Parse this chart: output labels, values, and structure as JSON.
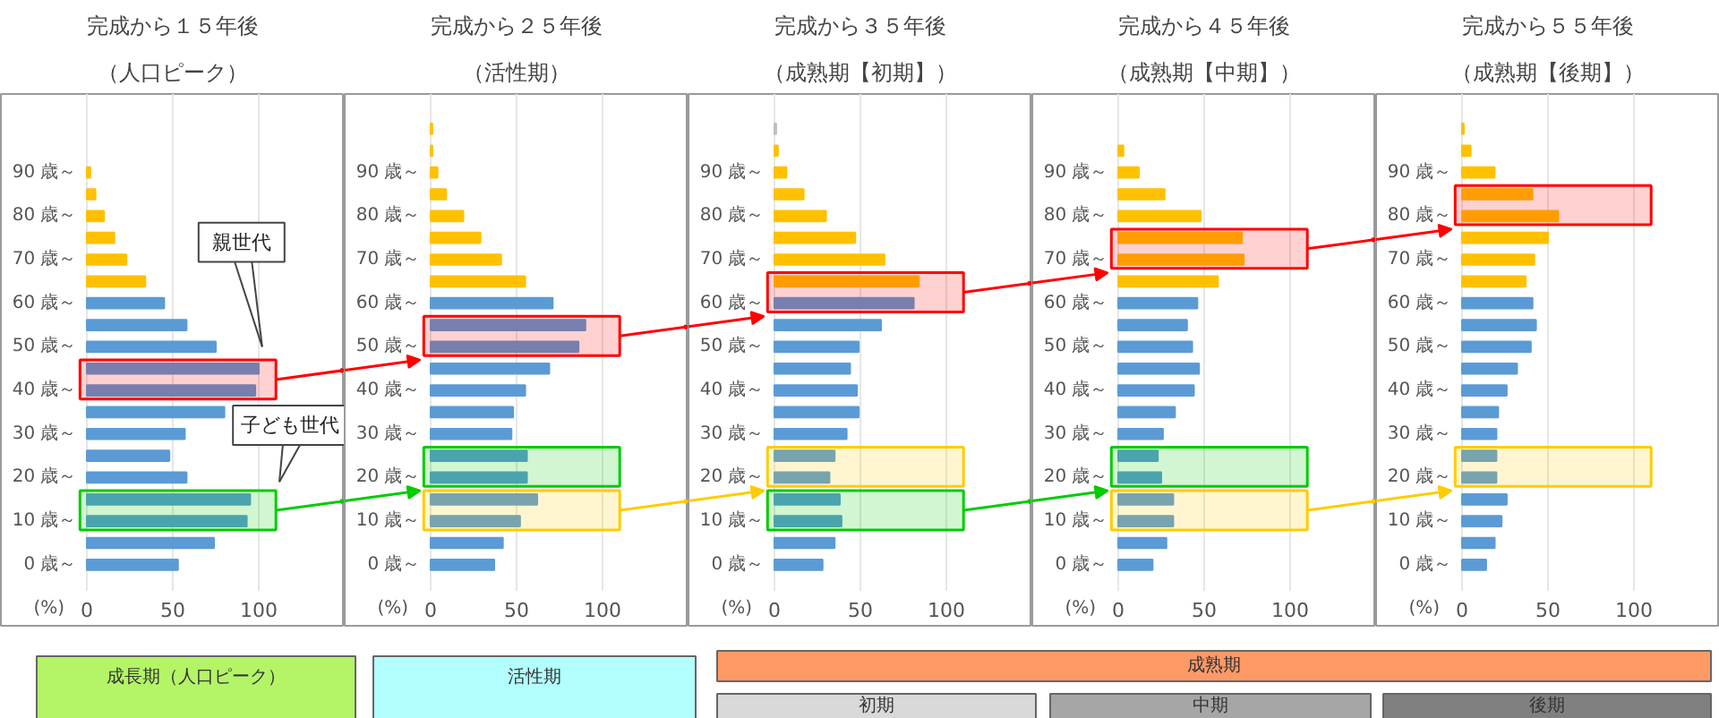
{
  "chart_data": [
    {
      "type": "bar",
      "orientation": "horizontal",
      "title": "完成から１５年後",
      "subtitle": "（人口ピーク）",
      "xlabel": "(%)",
      "x": [
        0,
        5,
        10,
        15,
        20,
        25,
        30,
        35,
        40,
        45,
        50,
        55,
        60,
        65,
        70,
        75,
        80,
        85,
        90
      ],
      "values": [
        53,
        74,
        93,
        95,
        58,
        48,
        57,
        80,
        98,
        100,
        75,
        58,
        45,
        34,
        23,
        16,
        10,
        5,
        2
      ],
      "colors": [
        "#5b9bd5",
        "#5b9bd5",
        "#5b9bd5",
        "#5b9bd5",
        "#5b9bd5",
        "#5b9bd5",
        "#5b9bd5",
        "#5b9bd5",
        "#5b9bd5",
        "#5b9bd5",
        "#5b9bd5",
        "#5b9bd5",
        "#5b9bd5",
        "#ffc000",
        "#ffc000",
        "#ffc000",
        "#ffc000",
        "#ffc000",
        "#ffc000"
      ],
      "xlim": [
        -50,
        150
      ],
      "xticks": [
        0,
        50,
        100
      ],
      "ylim": [
        -6,
        108
      ],
      "yticks": [
        {
          "value": 0,
          "label": "0 歳～"
        },
        {
          "value": 10,
          "label": "10 歳～"
        },
        {
          "value": 20,
          "label": "20 歳～"
        },
        {
          "value": 30,
          "label": "30 歳～"
        },
        {
          "value": 40,
          "label": "40 歳～"
        },
        {
          "value": 50,
          "label": "50 歳～"
        },
        {
          "value": 60,
          "label": "60 歳～"
        },
        {
          "value": 70,
          "label": "70 歳～"
        },
        {
          "value": 80,
          "label": "80 歳～"
        },
        {
          "value": 90,
          "label": "90 歳～"
        }
      ],
      "grid": "x",
      "bands": [
        {
          "axis": "y",
          "from": 38,
          "to": 47,
          "color": "#ff0000"
        },
        {
          "axis": "y",
          "from": 8,
          "to": 17,
          "color": "#00cc00"
        }
      ],
      "annotations": [
        "親世代",
        "子ども世代"
      ]
    },
    {
      "type": "bar",
      "orientation": "horizontal",
      "title": "完成から２５年後",
      "subtitle": "（活性期）",
      "xlabel": "(%)",
      "x": [
        0,
        5,
        10,
        15,
        20,
        25,
        30,
        35,
        40,
        45,
        50,
        55,
        60,
        65,
        70,
        75,
        80,
        85,
        90,
        95,
        100
      ],
      "values": [
        37,
        42,
        52,
        62,
        56,
        56,
        47,
        48,
        55,
        69,
        86,
        90,
        71,
        55,
        41,
        29,
        19,
        9,
        4,
        1,
        1
      ],
      "colors": [
        "#5b9bd5",
        "#5b9bd5",
        "#5b9bd5",
        "#5b9bd5",
        "#5b9bd5",
        "#5b9bd5",
        "#5b9bd5",
        "#5b9bd5",
        "#5b9bd5",
        "#5b9bd5",
        "#5b9bd5",
        "#5b9bd5",
        "#5b9bd5",
        "#ffc000",
        "#ffc000",
        "#ffc000",
        "#ffc000",
        "#ffc000",
        "#ffc000",
        "#ffc000",
        "#ffc000"
      ],
      "xlim": [
        -50,
        150
      ],
      "xticks": [
        0,
        50,
        100
      ],
      "ylim": [
        -6,
        108
      ],
      "yticks": [
        {
          "value": 0,
          "label": "0 歳～"
        },
        {
          "value": 10,
          "label": "10 歳～"
        },
        {
          "value": 20,
          "label": "20 歳～"
        },
        {
          "value": 30,
          "label": "30 歳～"
        },
        {
          "value": 40,
          "label": "40 歳～"
        },
        {
          "value": 50,
          "label": "50 歳～"
        },
        {
          "value": 60,
          "label": "60 歳～"
        },
        {
          "value": 70,
          "label": "70 歳～"
        },
        {
          "value": 80,
          "label": "80 歳～"
        },
        {
          "value": 90,
          "label": "90 歳～"
        }
      ],
      "grid": "x",
      "bands": [
        {
          "axis": "y",
          "from": 48,
          "to": 57,
          "color": "#ff0000"
        },
        {
          "axis": "y",
          "from": 18,
          "to": 27,
          "color": "#00cc00"
        },
        {
          "axis": "y",
          "from": 8,
          "to": 17,
          "color": "#ffcc00"
        }
      ]
    },
    {
      "type": "bar",
      "orientation": "horizontal",
      "title": "完成から３５年後",
      "subtitle": "（成熟期【初期】）",
      "xlabel": "(%)",
      "x": [
        0,
        5,
        10,
        15,
        20,
        25,
        30,
        35,
        40,
        45,
        50,
        55,
        60,
        65,
        70,
        75,
        80,
        85,
        90,
        95,
        100
      ],
      "values": [
        28,
        35,
        39,
        38,
        32,
        35,
        42,
        49,
        48,
        44,
        49,
        62,
        81,
        84,
        64,
        47,
        30,
        17,
        7,
        2,
        1
      ],
      "colors": [
        "#5b9bd5",
        "#5b9bd5",
        "#5b9bd5",
        "#5b9bd5",
        "#5b9bd5",
        "#5b9bd5",
        "#5b9bd5",
        "#5b9bd5",
        "#5b9bd5",
        "#5b9bd5",
        "#5b9bd5",
        "#5b9bd5",
        "#5b9bd5",
        "#ffc000",
        "#ffc000",
        "#ffc000",
        "#ffc000",
        "#ffc000",
        "#ffc000",
        "#ffc000",
        "#bfbfbf"
      ],
      "xlim": [
        -50,
        150
      ],
      "xticks": [
        0,
        50,
        100
      ],
      "ylim": [
        -6,
        108
      ],
      "yticks": [
        {
          "value": 0,
          "label": "0 歳～"
        },
        {
          "value": 10,
          "label": "10 歳～"
        },
        {
          "value": 20,
          "label": "20 歳～"
        },
        {
          "value": 30,
          "label": "30 歳～"
        },
        {
          "value": 40,
          "label": "40 歳～"
        },
        {
          "value": 50,
          "label": "50 歳～"
        },
        {
          "value": 60,
          "label": "60 歳～"
        },
        {
          "value": 70,
          "label": "70 歳～"
        },
        {
          "value": 80,
          "label": "80 歳～"
        },
        {
          "value": 90,
          "label": "90 歳～"
        }
      ],
      "grid": "x",
      "bands": [
        {
          "axis": "y",
          "from": 58,
          "to": 67,
          "color": "#ff0000"
        },
        {
          "axis": "y",
          "from": 18,
          "to": 27,
          "color": "#ffcc00"
        },
        {
          "axis": "y",
          "from": 8,
          "to": 17,
          "color": "#00cc00"
        }
      ]
    },
    {
      "type": "bar",
      "orientation": "horizontal",
      "title": "完成から４５年後",
      "subtitle": "（成熟期【中期】）",
      "xlabel": "(%)",
      "x": [
        0,
        5,
        10,
        15,
        20,
        25,
        30,
        35,
        40,
        45,
        50,
        55,
        60,
        65,
        70,
        75,
        80,
        85,
        90,
        95
      ],
      "values": [
        20,
        28,
        32,
        32,
        25,
        23,
        26,
        33,
        44,
        47,
        43,
        40,
        46,
        58,
        73,
        72,
        48,
        27,
        12,
        3
      ],
      "colors": [
        "#5b9bd5",
        "#5b9bd5",
        "#5b9bd5",
        "#5b9bd5",
        "#5b9bd5",
        "#5b9bd5",
        "#5b9bd5",
        "#5b9bd5",
        "#5b9bd5",
        "#5b9bd5",
        "#5b9bd5",
        "#5b9bd5",
        "#5b9bd5",
        "#ffc000",
        "#ffc000",
        "#ffc000",
        "#ffc000",
        "#ffc000",
        "#ffc000",
        "#ffc000"
      ],
      "xlim": [
        -50,
        150
      ],
      "xticks": [
        0,
        50,
        100
      ],
      "ylim": [
        -6,
        108
      ],
      "yticks": [
        {
          "value": 0,
          "label": "0 歳～"
        },
        {
          "value": 10,
          "label": "10 歳～"
        },
        {
          "value": 20,
          "label": "20 歳～"
        },
        {
          "value": 30,
          "label": "30 歳～"
        },
        {
          "value": 40,
          "label": "40 歳～"
        },
        {
          "value": 50,
          "label": "50 歳～"
        },
        {
          "value": 60,
          "label": "60 歳～"
        },
        {
          "value": 70,
          "label": "70 歳～"
        },
        {
          "value": 80,
          "label": "80 歳～"
        },
        {
          "value": 90,
          "label": "90 歳～"
        }
      ],
      "grid": "x",
      "bands": [
        {
          "axis": "y",
          "from": 68,
          "to": 77,
          "color": "#ff0000"
        },
        {
          "axis": "y",
          "from": 18,
          "to": 27,
          "color": "#00cc00"
        },
        {
          "axis": "y",
          "from": 8,
          "to": 17,
          "color": "#ffcc00"
        }
      ]
    },
    {
      "type": "bar",
      "orientation": "horizontal",
      "title": "完成から５５年後",
      "subtitle": "（成熟期【後期】）",
      "xlabel": "(%)",
      "x": [
        0,
        5,
        10,
        15,
        20,
        25,
        30,
        35,
        40,
        45,
        50,
        55,
        60,
        65,
        70,
        75,
        80,
        85,
        90,
        95,
        100
      ],
      "values": [
        14,
        19,
        23,
        26,
        20,
        20,
        20,
        21,
        26,
        32,
        40,
        43,
        41,
        37,
        42,
        50,
        56,
        41,
        19,
        5,
        1
      ],
      "colors": [
        "#5b9bd5",
        "#5b9bd5",
        "#5b9bd5",
        "#5b9bd5",
        "#5b9bd5",
        "#5b9bd5",
        "#5b9bd5",
        "#5b9bd5",
        "#5b9bd5",
        "#5b9bd5",
        "#5b9bd5",
        "#5b9bd5",
        "#5b9bd5",
        "#ffc000",
        "#ffc000",
        "#ffc000",
        "#ffc000",
        "#ffc000",
        "#ffc000",
        "#ffc000",
        "#ffc000"
      ],
      "xlim": [
        -50,
        150
      ],
      "xticks": [
        0,
        50,
        100
      ],
      "ylim": [
        -6,
        108
      ],
      "yticks": [
        {
          "value": 0,
          "label": "0 歳～"
        },
        {
          "value": 10,
          "label": "10 歳～"
        },
        {
          "value": 20,
          "label": "20 歳～"
        },
        {
          "value": 30,
          "label": "30 歳～"
        },
        {
          "value": 40,
          "label": "40 歳～"
        },
        {
          "value": 50,
          "label": "50 歳～"
        },
        {
          "value": 60,
          "label": "60 歳～"
        },
        {
          "value": 70,
          "label": "70 歳～"
        },
        {
          "value": 80,
          "label": "80 歳～"
        },
        {
          "value": 90,
          "label": "90 歳～"
        }
      ],
      "grid": "x",
      "bands": [
        {
          "axis": "y",
          "from": 78,
          "to": 87,
          "color": "#ff0000"
        },
        {
          "axis": "y",
          "from": 18,
          "to": 27,
          "color": "#ffcc00"
        }
      ]
    },
    {
      "type": "other",
      "annotations": [
        "成長期（人口ピーク）",
        "活性期",
        "成熟期",
        "初期",
        "中期",
        "後期"
      ]
    }
  ]
}
